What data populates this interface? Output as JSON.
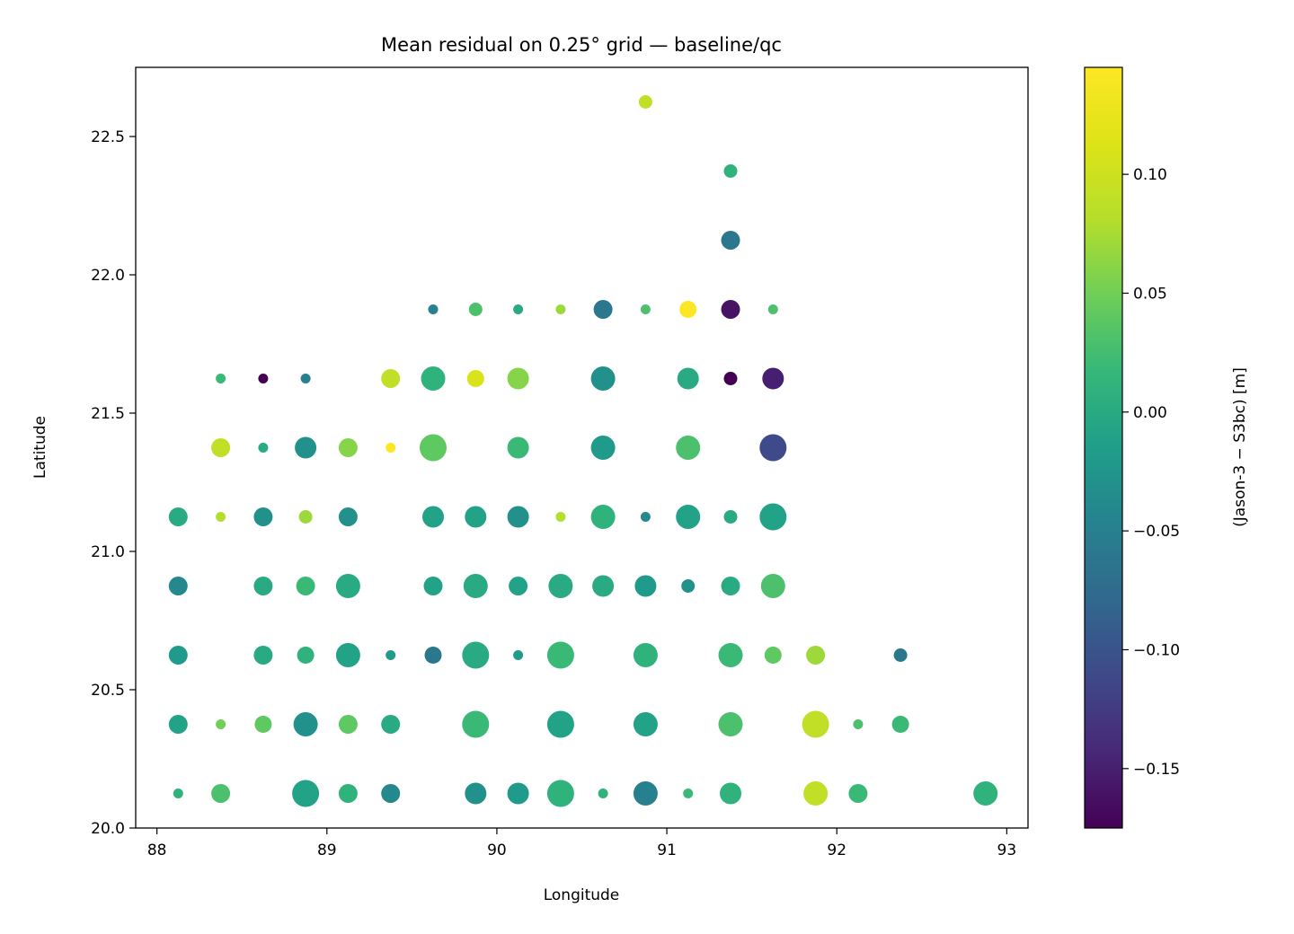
{
  "chart_data": {
    "type": "scatter",
    "title": "Mean residual on 0.25° grid — baseline/qc",
    "xlabel": "Longitude",
    "ylabel": "Latitude",
    "xlim": [
      87.875,
      93.125
    ],
    "ylim": [
      20.0,
      22.75
    ],
    "xticks": [
      88,
      89,
      90,
      91,
      92,
      93
    ],
    "yticks": [
      20.0,
      20.5,
      21.0,
      21.5,
      22.0,
      22.5
    ],
    "grid": false,
    "colorbar": {
      "label": "(Jason-3 − S3bc) [m]",
      "colormap": "viridis",
      "range": [
        -0.175,
        0.145
      ],
      "ticks": [
        -0.15,
        -0.1,
        -0.05,
        0.0,
        0.05,
        0.1
      ]
    },
    "points": [
      {
        "x": 90.875,
        "y": 22.625,
        "v": 0.09,
        "s": 1
      },
      {
        "x": 91.375,
        "y": 22.375,
        "v": 0.01,
        "s": 1
      },
      {
        "x": 91.375,
        "y": 22.125,
        "v": -0.06,
        "s": 3
      },
      {
        "x": 89.625,
        "y": 21.875,
        "v": -0.05,
        "s": 0
      },
      {
        "x": 89.875,
        "y": 21.875,
        "v": 0.03,
        "s": 1
      },
      {
        "x": 90.125,
        "y": 21.875,
        "v": 0.0,
        "s": 0
      },
      {
        "x": 90.375,
        "y": 21.875,
        "v": 0.07,
        "s": 0
      },
      {
        "x": 90.625,
        "y": 21.875,
        "v": -0.06,
        "s": 3
      },
      {
        "x": 90.875,
        "y": 21.875,
        "v": 0.03,
        "s": 0
      },
      {
        "x": 91.125,
        "y": 21.875,
        "v": 0.145,
        "s": 2
      },
      {
        "x": 91.375,
        "y": 21.875,
        "v": -0.16,
        "s": 3
      },
      {
        "x": 91.625,
        "y": 21.875,
        "v": 0.03,
        "s": 0
      },
      {
        "x": 88.375,
        "y": 21.625,
        "v": 0.02,
        "s": 0
      },
      {
        "x": 88.625,
        "y": 21.625,
        "v": -0.175,
        "s": 0
      },
      {
        "x": 88.875,
        "y": 21.625,
        "v": -0.05,
        "s": 0
      },
      {
        "x": 89.375,
        "y": 21.625,
        "v": 0.09,
        "s": 3
      },
      {
        "x": 89.625,
        "y": 21.625,
        "v": 0.01,
        "s": 5
      },
      {
        "x": 89.875,
        "y": 21.625,
        "v": 0.11,
        "s": 2
      },
      {
        "x": 90.125,
        "y": 21.625,
        "v": 0.06,
        "s": 4
      },
      {
        "x": 90.625,
        "y": 21.625,
        "v": -0.03,
        "s": 5
      },
      {
        "x": 91.125,
        "y": 21.625,
        "v": 0.0,
        "s": 4
      },
      {
        "x": 91.375,
        "y": 21.625,
        "v": -0.175,
        "s": 1
      },
      {
        "x": 91.625,
        "y": 21.625,
        "v": -0.15,
        "s": 4
      },
      {
        "x": 88.375,
        "y": 21.375,
        "v": 0.09,
        "s": 3
      },
      {
        "x": 88.625,
        "y": 21.375,
        "v": 0.0,
        "s": 0
      },
      {
        "x": 88.875,
        "y": 21.375,
        "v": -0.03,
        "s": 4
      },
      {
        "x": 89.125,
        "y": 21.375,
        "v": 0.06,
        "s": 3
      },
      {
        "x": 89.375,
        "y": 21.375,
        "v": 0.145,
        "s": 0
      },
      {
        "x": 89.625,
        "y": 21.375,
        "v": 0.04,
        "s": 6
      },
      {
        "x": 90.125,
        "y": 21.375,
        "v": 0.02,
        "s": 4
      },
      {
        "x": 90.625,
        "y": 21.375,
        "v": -0.02,
        "s": 5
      },
      {
        "x": 91.125,
        "y": 21.375,
        "v": 0.03,
        "s": 5
      },
      {
        "x": 91.625,
        "y": 21.375,
        "v": -0.11,
        "s": 6
      },
      {
        "x": 88.125,
        "y": 21.125,
        "v": 0.0,
        "s": 3
      },
      {
        "x": 88.375,
        "y": 21.125,
        "v": 0.08,
        "s": 0
      },
      {
        "x": 88.625,
        "y": 21.125,
        "v": -0.03,
        "s": 3
      },
      {
        "x": 88.875,
        "y": 21.125,
        "v": 0.07,
        "s": 1
      },
      {
        "x": 89.125,
        "y": 21.125,
        "v": -0.03,
        "s": 3
      },
      {
        "x": 89.625,
        "y": 21.125,
        "v": -0.01,
        "s": 4
      },
      {
        "x": 89.875,
        "y": 21.125,
        "v": -0.01,
        "s": 4
      },
      {
        "x": 90.125,
        "y": 21.125,
        "v": -0.03,
        "s": 4
      },
      {
        "x": 90.375,
        "y": 21.125,
        "v": 0.08,
        "s": 0
      },
      {
        "x": 90.625,
        "y": 21.125,
        "v": 0.01,
        "s": 5
      },
      {
        "x": 90.875,
        "y": 21.125,
        "v": -0.04,
        "s": 0
      },
      {
        "x": 91.125,
        "y": 21.125,
        "v": -0.01,
        "s": 5
      },
      {
        "x": 91.375,
        "y": 21.125,
        "v": 0.0,
        "s": 1
      },
      {
        "x": 91.625,
        "y": 21.125,
        "v": -0.01,
        "s": 6
      },
      {
        "x": 88.125,
        "y": 20.875,
        "v": -0.04,
        "s": 3
      },
      {
        "x": 88.625,
        "y": 20.875,
        "v": 0.0,
        "s": 3
      },
      {
        "x": 88.875,
        "y": 20.875,
        "v": 0.02,
        "s": 3
      },
      {
        "x": 89.125,
        "y": 20.875,
        "v": 0.0,
        "s": 5
      },
      {
        "x": 89.625,
        "y": 20.875,
        "v": -0.01,
        "s": 3
      },
      {
        "x": 89.875,
        "y": 20.875,
        "v": 0.0,
        "s": 5
      },
      {
        "x": 90.125,
        "y": 20.875,
        "v": -0.01,
        "s": 3
      },
      {
        "x": 90.375,
        "y": 20.875,
        "v": 0.0,
        "s": 5
      },
      {
        "x": 90.625,
        "y": 20.875,
        "v": 0.0,
        "s": 4
      },
      {
        "x": 90.875,
        "y": 20.875,
        "v": -0.02,
        "s": 4
      },
      {
        "x": 91.125,
        "y": 20.875,
        "v": -0.03,
        "s": 1
      },
      {
        "x": 91.375,
        "y": 20.875,
        "v": 0.0,
        "s": 3
      },
      {
        "x": 91.625,
        "y": 20.875,
        "v": 0.03,
        "s": 5
      },
      {
        "x": 88.125,
        "y": 20.625,
        "v": -0.02,
        "s": 3
      },
      {
        "x": 88.625,
        "y": 20.625,
        "v": 0.0,
        "s": 3
      },
      {
        "x": 88.875,
        "y": 20.625,
        "v": 0.01,
        "s": 2
      },
      {
        "x": 89.125,
        "y": 20.625,
        "v": -0.01,
        "s": 5
      },
      {
        "x": 89.375,
        "y": 20.625,
        "v": -0.02,
        "s": 0
      },
      {
        "x": 89.625,
        "y": 20.625,
        "v": -0.06,
        "s": 2
      },
      {
        "x": 89.875,
        "y": 20.625,
        "v": 0.0,
        "s": 6
      },
      {
        "x": 90.125,
        "y": 20.625,
        "v": -0.02,
        "s": 0
      },
      {
        "x": 90.375,
        "y": 20.625,
        "v": 0.02,
        "s": 6
      },
      {
        "x": 90.875,
        "y": 20.625,
        "v": 0.01,
        "s": 5
      },
      {
        "x": 91.375,
        "y": 20.625,
        "v": 0.02,
        "s": 5
      },
      {
        "x": 91.625,
        "y": 20.625,
        "v": 0.04,
        "s": 2
      },
      {
        "x": 91.875,
        "y": 20.625,
        "v": 0.07,
        "s": 3
      },
      {
        "x": 92.375,
        "y": 20.625,
        "v": -0.06,
        "s": 1
      },
      {
        "x": 88.125,
        "y": 20.375,
        "v": -0.01,
        "s": 3
      },
      {
        "x": 88.375,
        "y": 20.375,
        "v": 0.05,
        "s": 0
      },
      {
        "x": 88.625,
        "y": 20.375,
        "v": 0.04,
        "s": 2
      },
      {
        "x": 88.875,
        "y": 20.375,
        "v": -0.03,
        "s": 5
      },
      {
        "x": 89.125,
        "y": 20.375,
        "v": 0.04,
        "s": 3
      },
      {
        "x": 89.375,
        "y": 20.375,
        "v": 0.0,
        "s": 3
      },
      {
        "x": 89.875,
        "y": 20.375,
        "v": 0.02,
        "s": 6
      },
      {
        "x": 90.375,
        "y": 20.375,
        "v": -0.01,
        "s": 6
      },
      {
        "x": 90.875,
        "y": 20.375,
        "v": -0.01,
        "s": 5
      },
      {
        "x": 91.375,
        "y": 20.375,
        "v": 0.03,
        "s": 5
      },
      {
        "x": 91.875,
        "y": 20.375,
        "v": 0.09,
        "s": 6
      },
      {
        "x": 92.125,
        "y": 20.375,
        "v": 0.03,
        "s": 0
      },
      {
        "x": 92.375,
        "y": 20.375,
        "v": 0.02,
        "s": 2
      },
      {
        "x": 88.125,
        "y": 20.125,
        "v": 0.01,
        "s": 0
      },
      {
        "x": 88.375,
        "y": 20.125,
        "v": 0.03,
        "s": 3
      },
      {
        "x": 88.875,
        "y": 20.125,
        "v": -0.01,
        "s": 6
      },
      {
        "x": 89.125,
        "y": 20.125,
        "v": 0.01,
        "s": 3
      },
      {
        "x": 89.375,
        "y": 20.125,
        "v": -0.04,
        "s": 3
      },
      {
        "x": 89.875,
        "y": 20.125,
        "v": -0.03,
        "s": 4
      },
      {
        "x": 90.125,
        "y": 20.125,
        "v": -0.02,
        "s": 4
      },
      {
        "x": 90.375,
        "y": 20.125,
        "v": 0.01,
        "s": 6
      },
      {
        "x": 90.625,
        "y": 20.125,
        "v": 0.01,
        "s": 0
      },
      {
        "x": 90.875,
        "y": 20.125,
        "v": -0.05,
        "s": 5
      },
      {
        "x": 91.125,
        "y": 20.125,
        "v": 0.02,
        "s": 0
      },
      {
        "x": 91.375,
        "y": 20.125,
        "v": 0.01,
        "s": 4
      },
      {
        "x": 91.875,
        "y": 20.125,
        "v": 0.09,
        "s": 5
      },
      {
        "x": 92.125,
        "y": 20.125,
        "v": 0.02,
        "s": 3
      },
      {
        "x": 92.875,
        "y": 20.125,
        "v": 0.01,
        "s": 5
      }
    ]
  }
}
